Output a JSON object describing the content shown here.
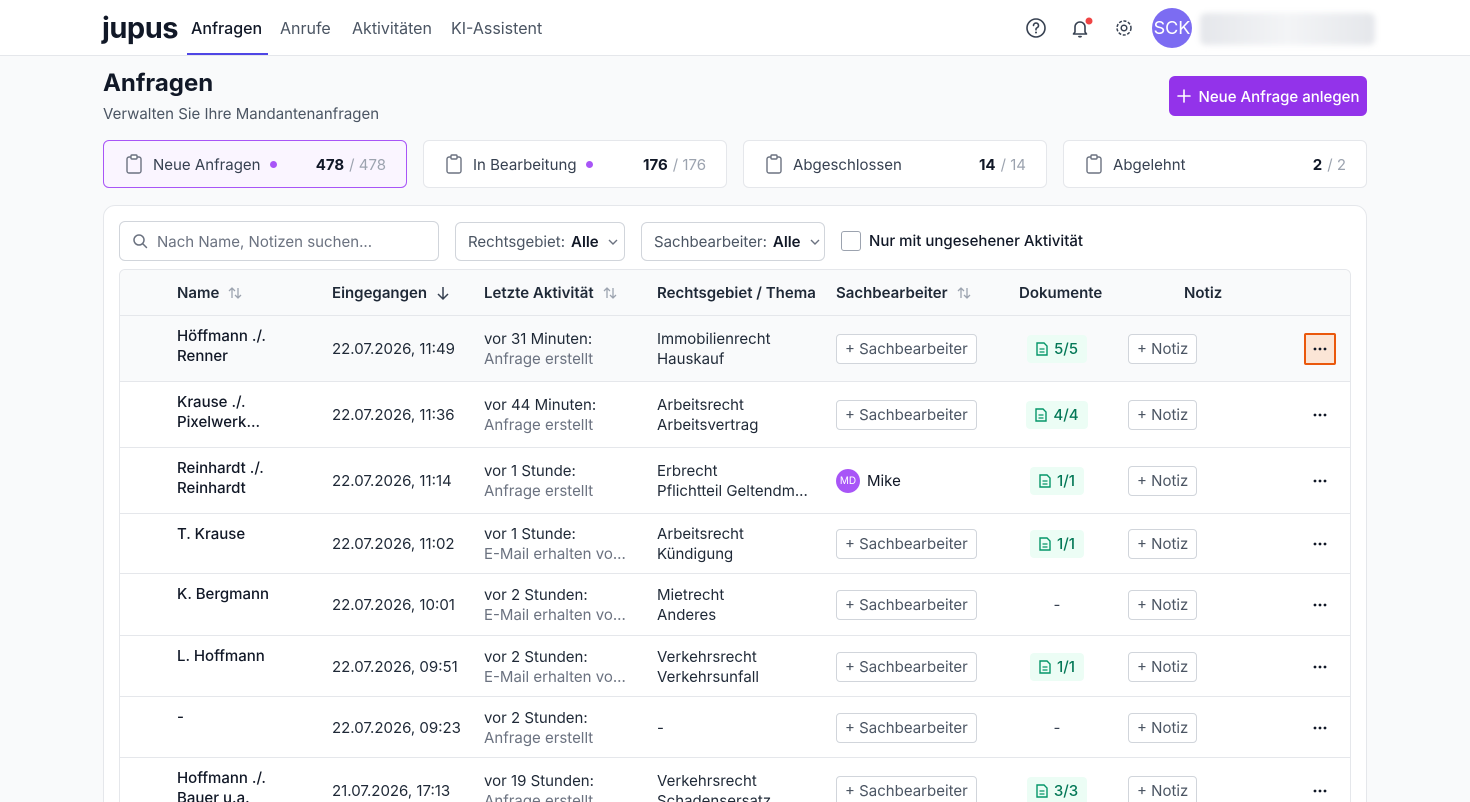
{
  "nav": {
    "logo": "jupus",
    "tabs": [
      "Anfragen",
      "Anrufe",
      "Aktivitäten",
      "KI-Assistent"
    ],
    "avatar": "SCK"
  },
  "header": {
    "title": "Anfragen",
    "subtitle": "Verwalten Sie Ihre Mandantenanfragen",
    "new_button": "Neue Anfrage anlegen"
  },
  "status_cards": [
    {
      "label": "Neue Anfragen",
      "count": "478",
      "total": "/ 478"
    },
    {
      "label": "In Bearbeitung",
      "count": "176",
      "total": "/ 176"
    },
    {
      "label": "Abgeschlossen",
      "count": "14",
      "total": "/ 14"
    },
    {
      "label": "Abgelehnt",
      "count": "2",
      "total": "/ 2"
    }
  ],
  "filters": {
    "search_placeholder": "Nach Name, Notizen suchen...",
    "rechtsgebiet_label": "Rechtsgebiet:",
    "rechtsgebiet_value": "Alle",
    "sachbearbeiter_label": "Sachbearbeiter:",
    "sachbearbeiter_value": "Alle",
    "unseen_checkbox": "Nur mit ungesehener Aktivität"
  },
  "table": {
    "columns": [
      "Name",
      "Eingegangen",
      "Letzte Aktivität",
      "Rechtsgebiet / Thema",
      "Sachbearbeiter",
      "Dokumente",
      "Notiz"
    ],
    "rows": [
      {
        "name": "Höffmann ./. Renner",
        "received": "22.07.2026, 11:49",
        "activity_time": "vor 31 Minuten:",
        "activity_desc": "Anfrage erstellt",
        "area": "Immobilienrecht",
        "topic": "Hauskauf",
        "assignee": "+ Sachbearbeiter",
        "documents": "5/5",
        "note": "+ Notiz"
      },
      {
        "name": "Krause ./. Pixelwerk...",
        "received": "22.07.2026, 11:36",
        "activity_time": "vor 44 Minuten:",
        "activity_desc": "Anfrage erstellt",
        "area": "Arbeitsrecht",
        "topic": "Arbeitsvertrag",
        "assignee": "+ Sachbearbeiter",
        "documents": "4/4",
        "note": "+ Notiz"
      },
      {
        "name": "Reinhardt ./. Reinhardt",
        "received": "22.07.2026, 11:14",
        "activity_time": "vor 1 Stunde:",
        "activity_desc": "Anfrage erstellt",
        "area": "Erbrecht",
        "topic": "Pflichtteil Geltendm...",
        "assignee": {
          "initials": "MD",
          "name": "Mike"
        },
        "documents": "1/1",
        "note": "+ Notiz"
      },
      {
        "name": "T. Krause",
        "received": "22.07.2026, 11:02",
        "activity_time": "vor 1 Stunde:",
        "activity_desc": "E-Mail erhalten vo...",
        "area": "Arbeitsrecht",
        "topic": "Kündigung",
        "assignee": "+ Sachbearbeiter",
        "documents": "1/1",
        "note": "+ Notiz"
      },
      {
        "name": "K. Bergmann",
        "received": "22.07.2026, 10:01",
        "activity_time": "vor 2 Stunden:",
        "activity_desc": "E-Mail erhalten vo...",
        "area": "Mietrecht",
        "topic": "Anderes",
        "assignee": "+ Sachbearbeiter",
        "documents": "-",
        "note": "+ Notiz"
      },
      {
        "name": "L. Hoffmann",
        "received": "22.07.2026, 09:51",
        "activity_time": "vor 2 Stunden:",
        "activity_desc": "E-Mail erhalten vo...",
        "area": "Verkehrsrecht",
        "topic": "Verkehrsunfall",
        "assignee": "+ Sachbearbeiter",
        "documents": "1/1",
        "note": "+ Notiz"
      },
      {
        "name": "-",
        "received": "22.07.2026, 09:23",
        "activity_time": "vor 2 Stunden:",
        "activity_desc": "Anfrage erstellt",
        "area": "-",
        "topic": null,
        "assignee": "+ Sachbearbeiter",
        "documents": "-",
        "note": "+ Notiz"
      },
      {
        "name": "Hoffmann ./. Bauer u.a.",
        "received": "21.07.2026, 17:13",
        "activity_time": "vor 19 Stunden:",
        "activity_desc": "Anfrage erstellt",
        "area": "Verkehrsrecht",
        "topic": "Schadensersatz",
        "assignee": "+ Sachbearbeiter",
        "documents": "3/3",
        "note": "+ Notiz"
      }
    ]
  }
}
